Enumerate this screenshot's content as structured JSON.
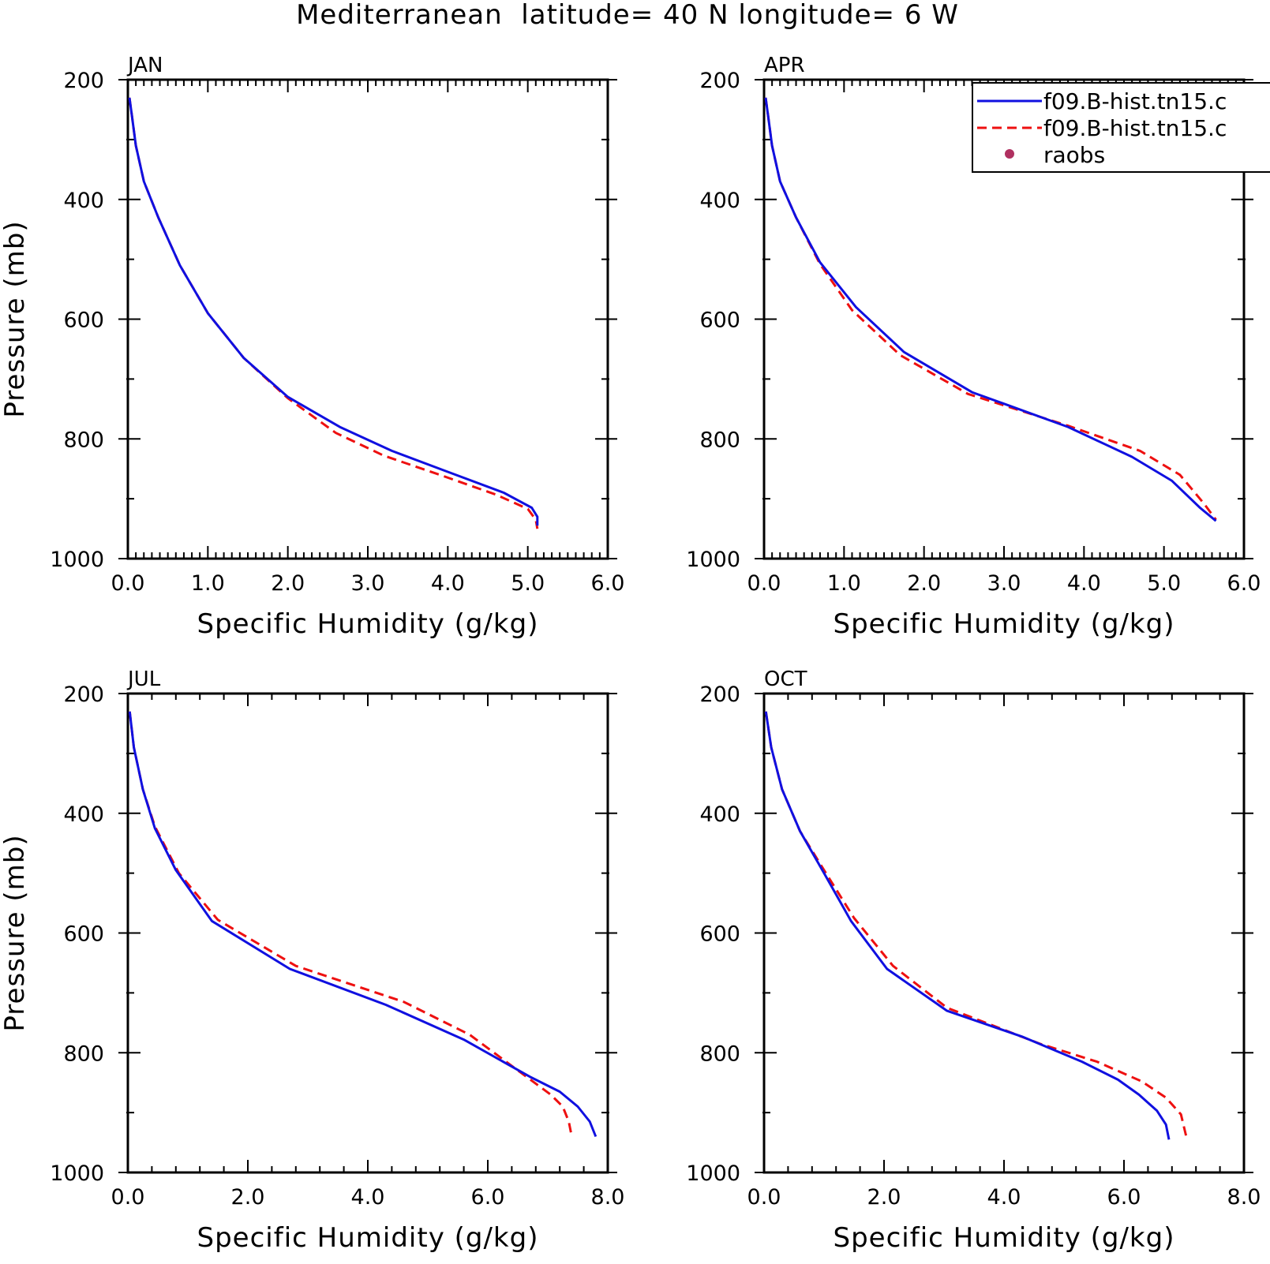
{
  "figure": {
    "title": "Mediterranean  latitude= 40 N longitude= 6 W"
  },
  "legend": {
    "entries": [
      {
        "label": "f09.B-hist.tn15.c",
        "color": "#1010e0",
        "style": "solid"
      },
      {
        "label": "f09.B-hist.tn15.c",
        "color": "#ee1010",
        "style": "dashed"
      },
      {
        "label": "raobs",
        "color": "#b03060",
        "style": "marker"
      }
    ]
  },
  "chart_data": [
    {
      "type": "line",
      "title": "JAN",
      "xlabel": "Specific Humidity (g/kg)",
      "ylabel": "Pressure (mb)",
      "xlim": [
        0,
        6
      ],
      "ylim": [
        200,
        1000
      ],
      "y_inverted": true,
      "xticks": [
        "0.0",
        "1.0",
        "2.0",
        "3.0",
        "4.0",
        "5.0",
        "6.0"
      ],
      "yticks": [
        "200",
        "400",
        "600",
        "800",
        "1000"
      ],
      "series": [
        {
          "color": "#1010e0",
          "style": "solid",
          "x": [
            0.02,
            0.05,
            0.1,
            0.2,
            0.38,
            0.65,
            1.0,
            1.45,
            2.0,
            2.65,
            3.3,
            4.0,
            4.7,
            5.05,
            5.12,
            5.12
          ],
          "y": [
            230,
            260,
            310,
            370,
            430,
            510,
            590,
            665,
            730,
            780,
            820,
            855,
            890,
            915,
            930,
            945
          ]
        },
        {
          "color": "#ee1010",
          "style": "dashed",
          "x": [
            0.02,
            0.05,
            0.1,
            0.2,
            0.38,
            0.65,
            1.0,
            1.45,
            2.0,
            2.6,
            3.2,
            3.9,
            4.6,
            5.0,
            5.1,
            5.12
          ],
          "y": [
            230,
            260,
            310,
            370,
            430,
            510,
            590,
            665,
            732,
            790,
            828,
            860,
            893,
            917,
            935,
            950
          ]
        }
      ]
    },
    {
      "type": "line",
      "title": "APR",
      "xlabel": "Specific Humidity (g/kg)",
      "ylabel": "",
      "xlim": [
        0,
        6
      ],
      "ylim": [
        200,
        1000
      ],
      "y_inverted": true,
      "xticks": [
        "0.0",
        "1.0",
        "2.0",
        "3.0",
        "4.0",
        "5.0",
        "6.0"
      ],
      "yticks": [
        "200",
        "400",
        "600",
        "800",
        "1000"
      ],
      "series": [
        {
          "color": "#1010e0",
          "style": "solid",
          "x": [
            0.02,
            0.05,
            0.1,
            0.2,
            0.4,
            0.7,
            1.15,
            1.75,
            2.6,
            3.8,
            4.6,
            5.1,
            5.45,
            5.65
          ],
          "y": [
            230,
            260,
            310,
            370,
            430,
            505,
            580,
            655,
            722,
            780,
            830,
            870,
            915,
            937
          ]
        },
        {
          "color": "#ee1010",
          "style": "dashed",
          "x": [
            0.02,
            0.05,
            0.1,
            0.2,
            0.4,
            0.7,
            1.1,
            1.7,
            2.55,
            3.8,
            4.7,
            5.2,
            5.5,
            5.65
          ],
          "y": [
            230,
            260,
            310,
            370,
            430,
            508,
            585,
            660,
            725,
            778,
            820,
            860,
            908,
            935
          ]
        }
      ]
    },
    {
      "type": "line",
      "title": "JUL",
      "xlabel": "Specific Humidity (g/kg)",
      "ylabel": "Pressure (mb)",
      "xlim": [
        0,
        8
      ],
      "ylim": [
        200,
        1000
      ],
      "y_inverted": true,
      "xticks": [
        "0.0",
        "2.0",
        "4.0",
        "6.0",
        "8.0"
      ],
      "yticks": [
        "200",
        "400",
        "600",
        "800",
        "1000"
      ],
      "series": [
        {
          "color": "#1010e0",
          "style": "solid",
          "x": [
            0.03,
            0.1,
            0.25,
            0.45,
            0.8,
            1.4,
            2.7,
            4.3,
            5.6,
            6.7,
            7.2,
            7.5,
            7.7,
            7.8
          ],
          "y": [
            230,
            290,
            360,
            425,
            495,
            580,
            660,
            720,
            778,
            840,
            865,
            890,
            915,
            940
          ]
        },
        {
          "color": "#ee1010",
          "style": "dashed",
          "x": [
            0.03,
            0.1,
            0.25,
            0.45,
            0.85,
            1.5,
            2.8,
            4.6,
            5.7,
            6.4,
            7.05,
            7.25,
            7.35,
            7.4
          ],
          "y": [
            230,
            290,
            360,
            422,
            500,
            578,
            655,
            715,
            770,
            822,
            870,
            890,
            915,
            940
          ]
        }
      ]
    },
    {
      "type": "line",
      "title": "OCT",
      "xlabel": "Specific Humidity (g/kg)",
      "ylabel": "",
      "xlim": [
        0,
        8
      ],
      "ylim": [
        200,
        1000
      ],
      "y_inverted": true,
      "xticks": [
        "0.0",
        "2.0",
        "4.0",
        "6.0",
        "8.0"
      ],
      "yticks": [
        "200",
        "400",
        "600",
        "800",
        "1000"
      ],
      "series": [
        {
          "color": "#1010e0",
          "style": "solid",
          "x": [
            0.03,
            0.12,
            0.3,
            0.6,
            1.0,
            1.45,
            2.05,
            3.05,
            4.3,
            5.3,
            5.9,
            6.25,
            6.55,
            6.7,
            6.75
          ],
          "y": [
            230,
            290,
            360,
            430,
            500,
            580,
            660,
            730,
            773,
            815,
            845,
            870,
            897,
            920,
            945
          ]
        },
        {
          "color": "#ee1010",
          "style": "dashed",
          "x": [
            0.03,
            0.12,
            0.3,
            0.6,
            1.0,
            1.5,
            2.15,
            3.05,
            4.6,
            5.55,
            6.3,
            6.7,
            6.95,
            7.05
          ],
          "y": [
            230,
            290,
            360,
            430,
            495,
            575,
            655,
            725,
            785,
            815,
            848,
            875,
            903,
            945
          ]
        }
      ]
    }
  ]
}
